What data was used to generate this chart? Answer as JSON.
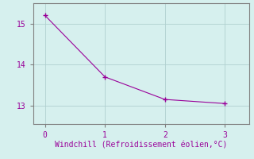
{
  "x": [
    0,
    1,
    2,
    3
  ],
  "y": [
    15.2,
    13.7,
    13.15,
    13.05
  ],
  "line_color": "#990099",
  "marker": "+",
  "marker_size": 4,
  "marker_color": "#990099",
  "xlabel": "Windchill (Refroidissement éolien,°C)",
  "xlabel_color": "#990099",
  "xlabel_fontsize": 7,
  "bg_color": "#d6f0ee",
  "grid_color": "#b0d0d0",
  "spine_color": "#808080",
  "tick_color": "#808080",
  "tick_labelcolor": "#990099",
  "tick_fontsize": 7,
  "xlim": [
    -0.2,
    3.4
  ],
  "ylim": [
    12.55,
    15.5
  ],
  "yticks": [
    13,
    14,
    15
  ],
  "xticks": [
    0,
    1,
    2,
    3
  ],
  "line_width": 0.8
}
